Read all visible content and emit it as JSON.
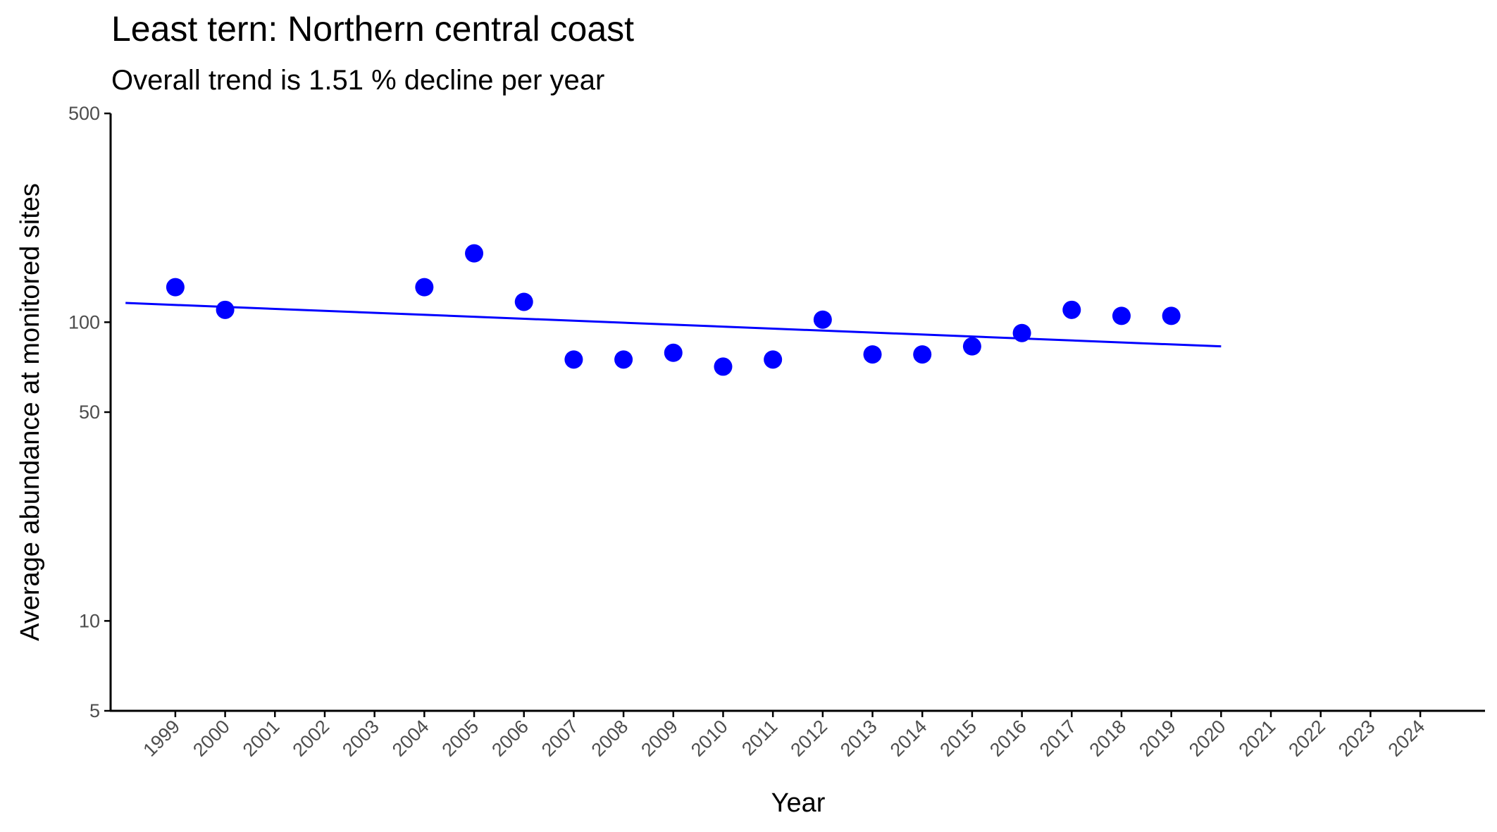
{
  "chart_data": {
    "type": "scatter",
    "title": "Least tern: Northern central coast",
    "subtitle": "Overall trend is 1.51 % decline per year",
    "x_label": "Year",
    "y_label": "Average abundance at monitored sites",
    "x": [
      1999,
      2000,
      2004,
      2005,
      2006,
      2007,
      2008,
      2009,
      2010,
      2011,
      2012,
      2013,
      2014,
      2015,
      2016,
      2017,
      2018,
      2019
    ],
    "values": [
      131,
      110,
      131,
      170,
      117,
      75,
      75,
      79,
      71,
      75,
      102,
      78,
      78,
      83,
      92,
      110,
      105,
      105
    ],
    "color": "#0000ff",
    "trend": {
      "x": [
        1998,
        2020
      ],
      "values": [
        116,
        83
      ],
      "color": "#0000ff"
    },
    "log_y": true,
    "xlim": [
      1997.7,
      2025.3
    ],
    "ylim": [
      5,
      500
    ],
    "xticks": [
      1999,
      2000,
      2001,
      2002,
      2003,
      2004,
      2005,
      2006,
      2007,
      2008,
      2009,
      2010,
      2011,
      2012,
      2013,
      2014,
      2015,
      2016,
      2017,
      2018,
      2019,
      2020,
      2021,
      2022,
      2023,
      2024
    ],
    "yticks": [
      5,
      10,
      50,
      100,
      500
    ]
  }
}
